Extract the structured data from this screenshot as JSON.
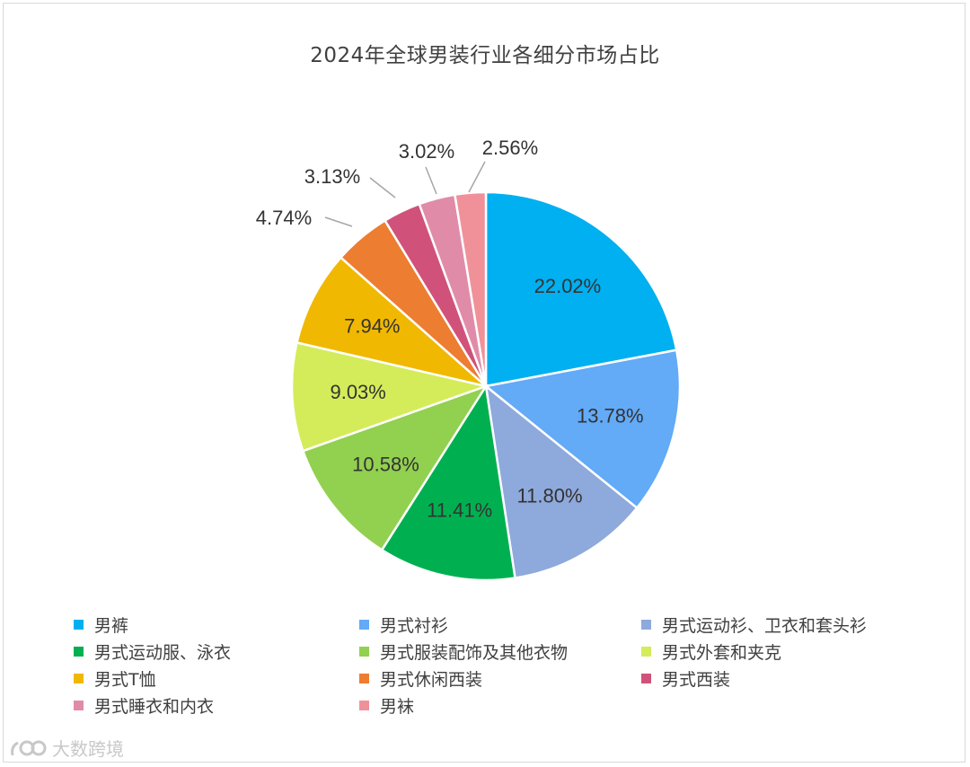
{
  "chart_data": {
    "type": "pie",
    "title": "2024年全球男装行业各细分市场占比",
    "slices": [
      {
        "name": "男裤",
        "value": 22.02,
        "label": "22.02%",
        "color": "#00B0F0"
      },
      {
        "name": "男式衬衫",
        "value": 13.78,
        "label": "13.78%",
        "color": "#63AAF7"
      },
      {
        "name": "男式运动衫、卫衣和套头衫",
        "value": 11.8,
        "label": "11.80%",
        "color": "#8EA9DB"
      },
      {
        "name": "男式运动服、泳衣",
        "value": 11.41,
        "label": "11.41%",
        "color": "#00B050"
      },
      {
        "name": "男式服装配饰及其他衣物",
        "value": 10.58,
        "label": "10.58%",
        "color": "#92D050"
      },
      {
        "name": "男式外套和夹克",
        "value": 9.03,
        "label": "9.03%",
        "color": "#D4EC5A"
      },
      {
        "name": "男式T恤",
        "value": 7.94,
        "label": "7.94%",
        "color": "#F0B800"
      },
      {
        "name": "男式休闲西装",
        "value": 4.74,
        "label": "4.74%",
        "color": "#ED7D31"
      },
      {
        "name": "男式西装",
        "value": 3.13,
        "label": "3.13%",
        "color": "#D0527A"
      },
      {
        "name": "男式睡衣和内衣",
        "value": 3.02,
        "label": "3.02%",
        "color": "#E08CA8"
      },
      {
        "name": "男袜",
        "value": 2.56,
        "label": "2.56%",
        "color": "#F0919A"
      }
    ],
    "legend_position": "bottom",
    "start_angle": "12 o'clock",
    "direction": "clockwise"
  },
  "watermark": {
    "text": "大数跨境"
  }
}
